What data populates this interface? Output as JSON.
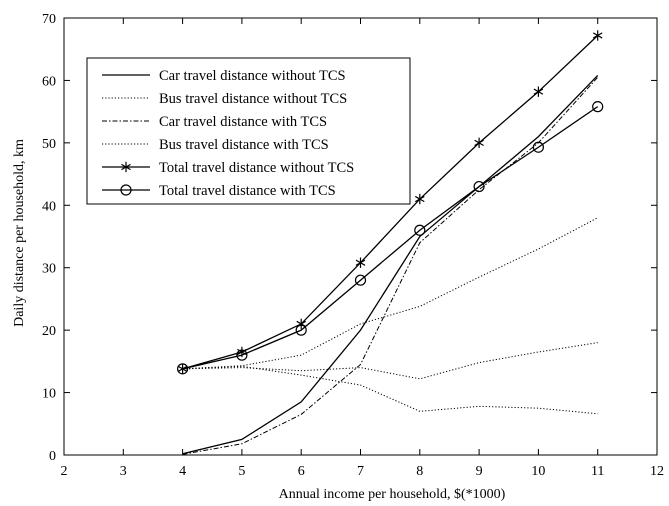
{
  "chart_data": {
    "type": "line",
    "title": "",
    "xlabel": "Annual income per household, $(*1000)",
    "ylabel": "Daily distance per household, km",
    "xlim": [
      2,
      12
    ],
    "ylim": [
      0,
      70
    ],
    "xticks": [
      2,
      3,
      4,
      5,
      6,
      7,
      8,
      9,
      10,
      11,
      12
    ],
    "yticks": [
      0,
      10,
      20,
      30,
      40,
      50,
      60,
      70
    ],
    "grid": false,
    "legend_position": "top-left",
    "x": [
      4,
      5,
      6,
      7,
      8,
      9,
      10,
      11
    ],
    "series": [
      {
        "name": "Car travel distance without TCS",
        "style": "solid",
        "marker": "none",
        "color": "#000000",
        "values": [
          0.2,
          2.5,
          8.5,
          20,
          35,
          43,
          51,
          60.8
        ]
      },
      {
        "name": "Bus travel distance without TCS",
        "style": "dotted",
        "marker": "none",
        "color": "#000000",
        "values": [
          13.8,
          14.2,
          12.8,
          11.2,
          7.0,
          7.8,
          7.5,
          6.6
        ]
      },
      {
        "name": "Car travel distance with TCS",
        "style": "dashdot",
        "marker": "none",
        "color": "#000000",
        "values": [
          0.1,
          1.8,
          6.5,
          14.5,
          34,
          42.5,
          50,
          60.5
        ]
      },
      {
        "name": "Bus travel distance with TCS",
        "style": "dotted",
        "marker": "none",
        "color": "#000000",
        "values": [
          13.8,
          14.0,
          13.5,
          14.0,
          12.2,
          14.8,
          16.5,
          18.0
        ]
      },
      {
        "name": "Total travel distance without TCS",
        "style": "solid",
        "marker": "star",
        "color": "#000000",
        "values": [
          13.8,
          16.5,
          21,
          30.8,
          41,
          50,
          58.2,
          67.2
        ]
      },
      {
        "name": "Total travel distance with TCS",
        "style": "solid",
        "marker": "circle",
        "color": "#000000",
        "values": [
          13.8,
          16,
          20,
          28,
          36,
          43,
          49.3,
          55.8
        ]
      },
      {
        "name": "",
        "style": "dotted",
        "marker": "none",
        "color": "#000000",
        "values": [
          13.8,
          14.3,
          16,
          21,
          23.8,
          28.5,
          33,
          38
        ]
      }
    ]
  }
}
